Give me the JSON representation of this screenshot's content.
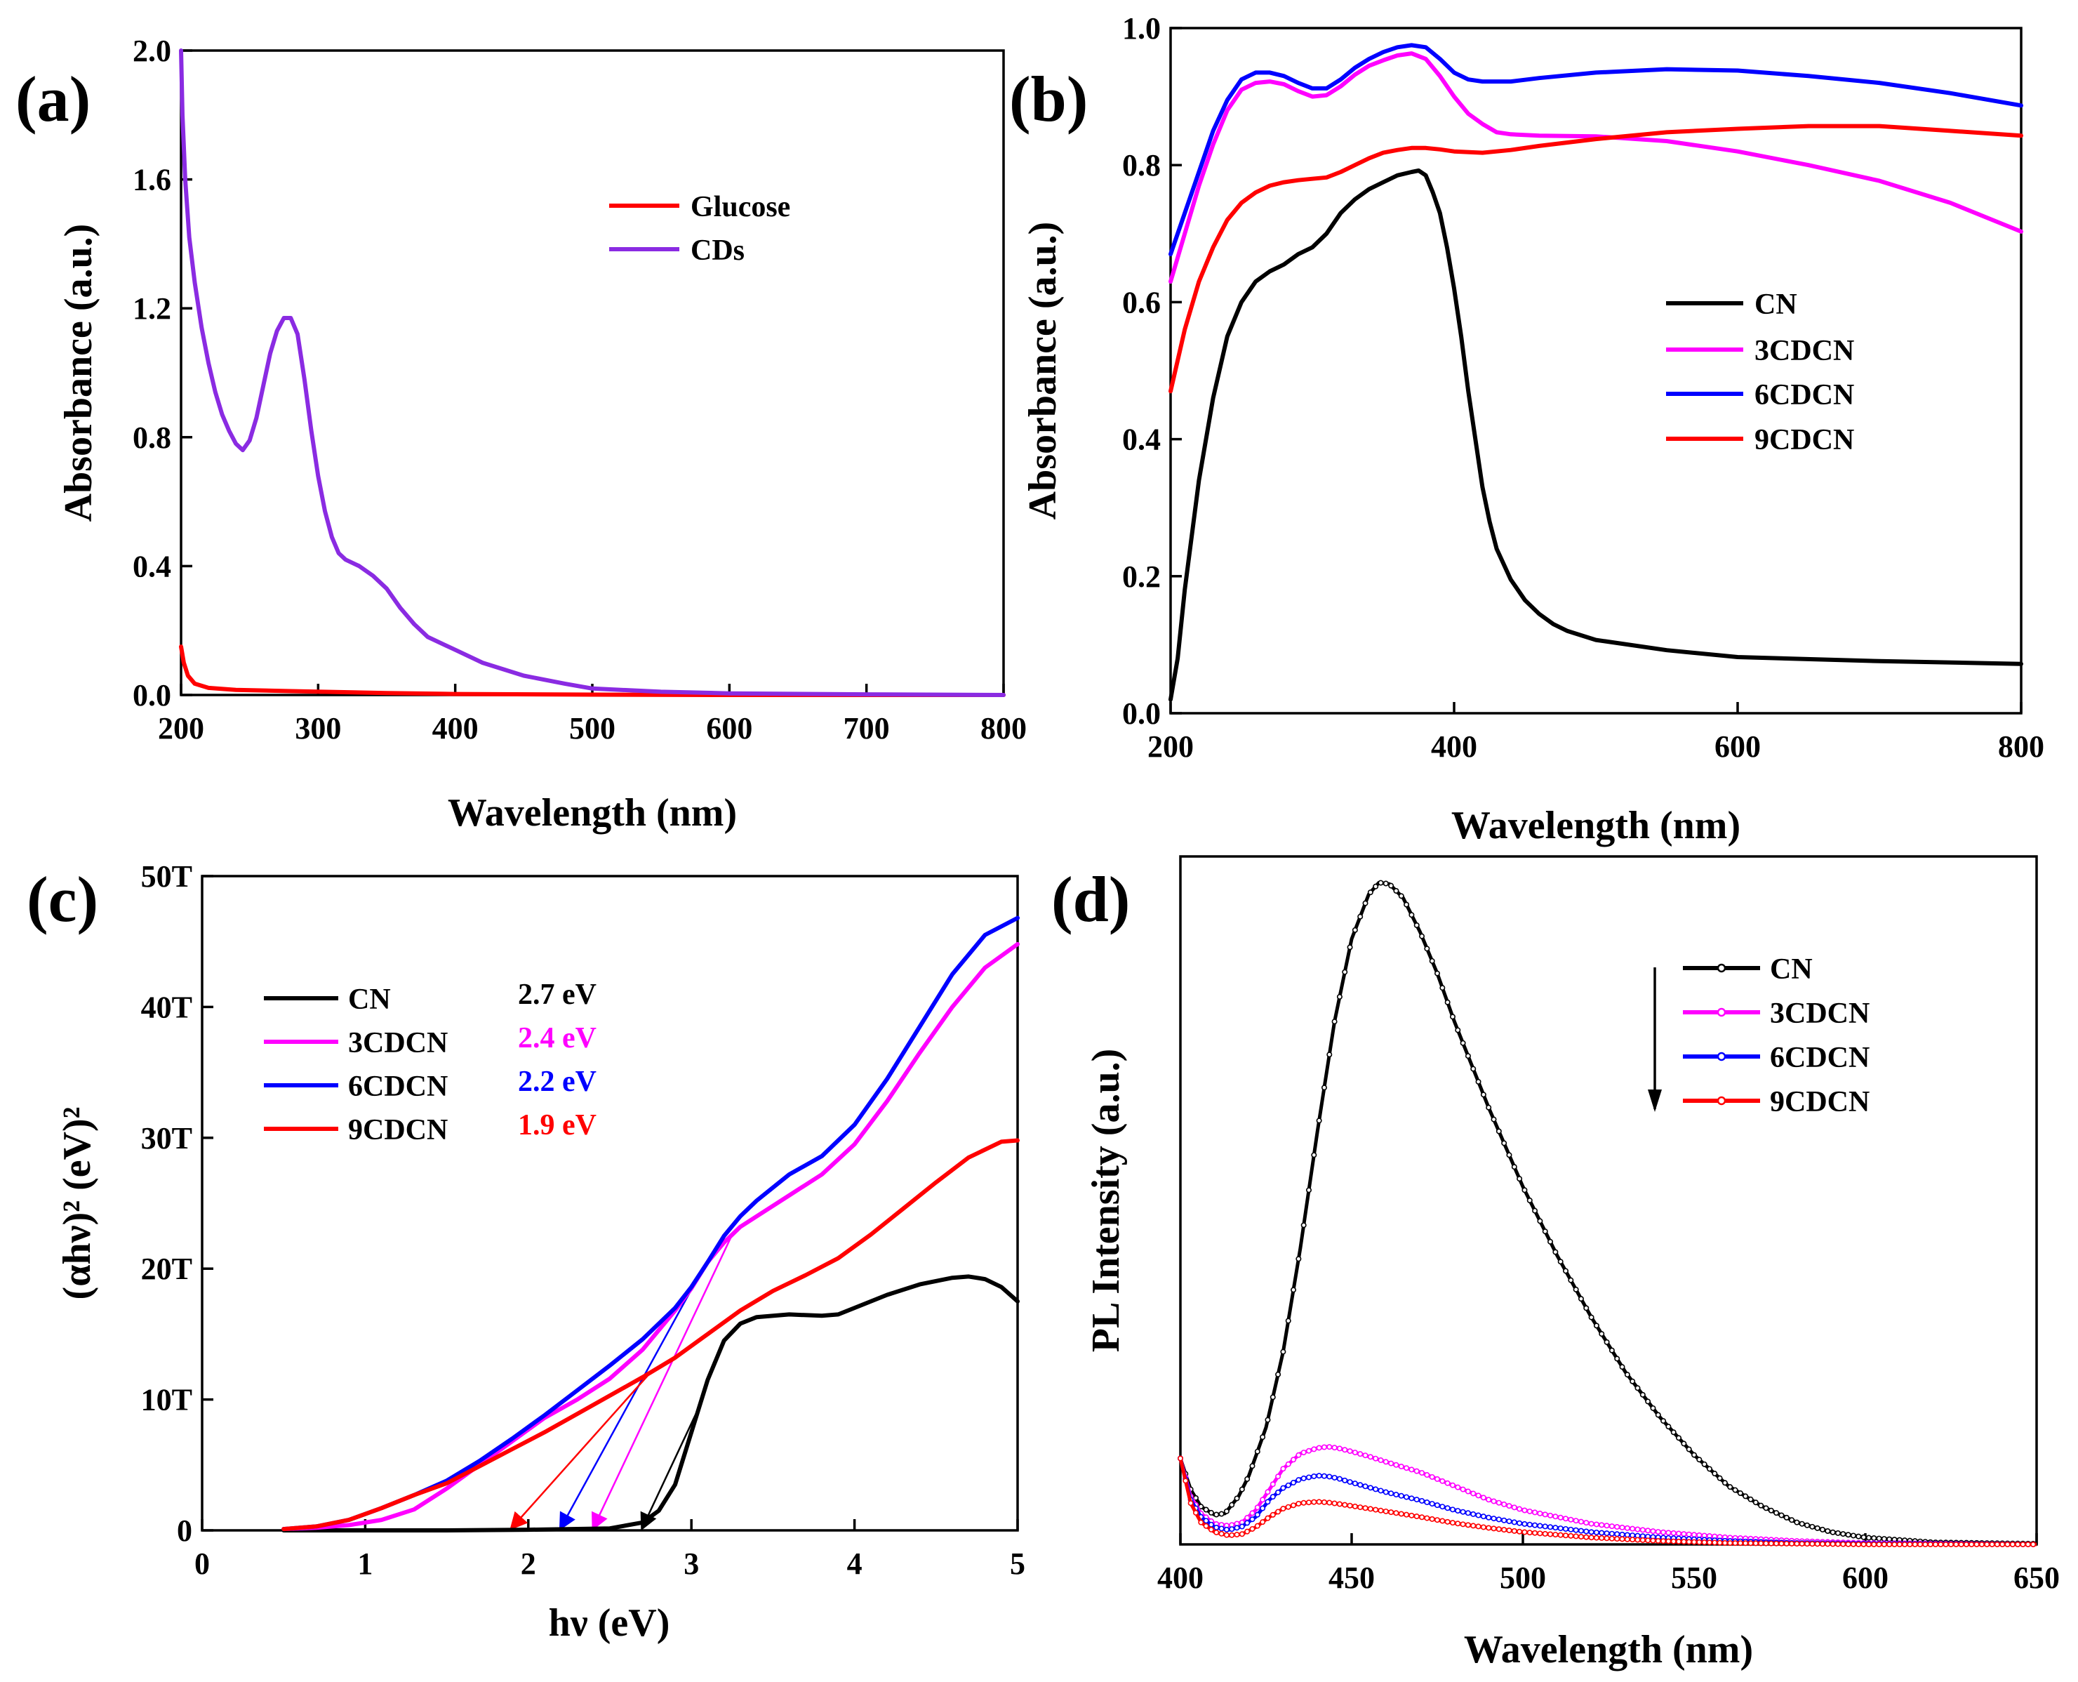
{
  "chart_data": [
    {
      "panel": "(a)",
      "type": "line",
      "xlabel": "Wavelength (nm)",
      "ylabel": "Absorbance (a.u.)",
      "xlim": [
        200,
        800
      ],
      "ylim": [
        0,
        2.0
      ],
      "xticks": [
        "200",
        "300",
        "400",
        "500",
        "600",
        "700",
        "800"
      ],
      "yticks": [
        "0.0",
        "0.4",
        "0.8",
        "1.2",
        "1.6",
        "2.0"
      ],
      "legend_position": "top-right",
      "series": [
        {
          "name": "Glucose",
          "color": "#ff0000",
          "x": [
            200,
            202,
            205,
            210,
            220,
            240,
            280,
            350,
            400,
            500,
            600,
            700,
            800
          ],
          "y": [
            0.15,
            0.1,
            0.06,
            0.035,
            0.022,
            0.016,
            0.012,
            0.006,
            0.003,
            0.001,
            0.0,
            0.0,
            0.0
          ]
        },
        {
          "name": "CDs",
          "color": "#8a2be2",
          "x": [
            200,
            201,
            203,
            206,
            210,
            215,
            220,
            225,
            230,
            235,
            240,
            245,
            250,
            255,
            260,
            265,
            270,
            275,
            280,
            285,
            290,
            295,
            300,
            305,
            310,
            315,
            320,
            330,
            340,
            350,
            360,
            370,
            380,
            400,
            420,
            450,
            480,
            500,
            550,
            600,
            700,
            800
          ],
          "y": [
            2.0,
            1.8,
            1.6,
            1.42,
            1.28,
            1.14,
            1.03,
            0.94,
            0.87,
            0.82,
            0.78,
            0.76,
            0.79,
            0.86,
            0.96,
            1.06,
            1.13,
            1.17,
            1.17,
            1.12,
            0.98,
            0.82,
            0.68,
            0.57,
            0.49,
            0.44,
            0.42,
            0.4,
            0.37,
            0.33,
            0.27,
            0.22,
            0.18,
            0.14,
            0.1,
            0.06,
            0.035,
            0.02,
            0.01,
            0.005,
            0.002,
            0.0
          ]
        }
      ]
    },
    {
      "panel": "(b)",
      "type": "line",
      "xlabel": "Wavelength (nm)",
      "ylabel": "Absorbance (a.u.)",
      "xlim": [
        200,
        800
      ],
      "ylim": [
        0,
        1.0
      ],
      "xticks": [
        "200",
        "400",
        "600",
        "800"
      ],
      "yticks": [
        "0.0",
        "0.2",
        "0.4",
        "0.6",
        "0.8",
        "1.0"
      ],
      "legend_position": "middle-right",
      "series": [
        {
          "name": "CN",
          "color": "#000000",
          "x": [
            200,
            205,
            210,
            220,
            230,
            240,
            250,
            260,
            270,
            280,
            290,
            300,
            310,
            320,
            330,
            340,
            350,
            360,
            370,
            375,
            380,
            385,
            390,
            395,
            400,
            405,
            410,
            415,
            420,
            425,
            430,
            440,
            450,
            460,
            470,
            480,
            500,
            550,
            600,
            700,
            800
          ],
          "y": [
            0.02,
            0.08,
            0.18,
            0.34,
            0.46,
            0.55,
            0.6,
            0.63,
            0.645,
            0.655,
            0.67,
            0.68,
            0.7,
            0.73,
            0.75,
            0.765,
            0.775,
            0.785,
            0.79,
            0.792,
            0.785,
            0.76,
            0.73,
            0.68,
            0.62,
            0.55,
            0.47,
            0.4,
            0.33,
            0.28,
            0.24,
            0.195,
            0.165,
            0.145,
            0.13,
            0.12,
            0.107,
            0.092,
            0.082,
            0.076,
            0.072
          ]
        },
        {
          "name": "3CDCN",
          "color": "#ff00ff",
          "x": [
            200,
            210,
            220,
            230,
            240,
            250,
            260,
            270,
            280,
            290,
            300,
            310,
            320,
            330,
            340,
            350,
            360,
            370,
            380,
            390,
            400,
            410,
            420,
            430,
            440,
            460,
            500,
            550,
            600,
            650,
            700,
            750,
            800
          ],
          "y": [
            0.63,
            0.7,
            0.77,
            0.83,
            0.88,
            0.91,
            0.92,
            0.922,
            0.918,
            0.908,
            0.9,
            0.902,
            0.915,
            0.932,
            0.945,
            0.953,
            0.96,
            0.963,
            0.955,
            0.93,
            0.9,
            0.875,
            0.86,
            0.848,
            0.845,
            0.843,
            0.842,
            0.835,
            0.82,
            0.8,
            0.777,
            0.745,
            0.703
          ]
        },
        {
          "name": "6CDCN",
          "color": "#0000ff",
          "x": [
            200,
            210,
            220,
            230,
            240,
            250,
            260,
            270,
            280,
            290,
            300,
            310,
            320,
            330,
            340,
            350,
            360,
            370,
            380,
            390,
            400,
            410,
            420,
            440,
            460,
            500,
            550,
            600,
            650,
            700,
            750,
            800
          ],
          "y": [
            0.67,
            0.73,
            0.79,
            0.85,
            0.895,
            0.925,
            0.935,
            0.935,
            0.93,
            0.92,
            0.912,
            0.912,
            0.925,
            0.942,
            0.955,
            0.965,
            0.972,
            0.975,
            0.972,
            0.955,
            0.935,
            0.925,
            0.922,
            0.922,
            0.927,
            0.935,
            0.94,
            0.938,
            0.93,
            0.92,
            0.905,
            0.887
          ]
        },
        {
          "name": "9CDCN",
          "color": "#ff0000",
          "x": [
            200,
            210,
            220,
            230,
            240,
            250,
            260,
            270,
            280,
            290,
            300,
            310,
            320,
            330,
            340,
            350,
            360,
            370,
            380,
            390,
            400,
            420,
            440,
            460,
            500,
            550,
            600,
            650,
            700,
            750,
            800
          ],
          "y": [
            0.47,
            0.56,
            0.63,
            0.68,
            0.72,
            0.745,
            0.76,
            0.77,
            0.775,
            0.778,
            0.78,
            0.782,
            0.79,
            0.8,
            0.81,
            0.818,
            0.822,
            0.825,
            0.825,
            0.823,
            0.82,
            0.818,
            0.822,
            0.828,
            0.838,
            0.848,
            0.853,
            0.857,
            0.857,
            0.85,
            0.843
          ]
        }
      ]
    },
    {
      "panel": "(c)",
      "type": "line",
      "xlabel": "hν (eV)",
      "ylabel": "(αhν)² (eV)²",
      "xlim": [
        0,
        5
      ],
      "ylim": [
        0,
        50
      ],
      "y_unit_suffix": "T",
      "xticks": [
        "0",
        "1",
        "2",
        "3",
        "4",
        "5"
      ],
      "yticks": [
        "0",
        "10T",
        "20T",
        "30T",
        "40T",
        "50T"
      ],
      "legend_position": "top-left",
      "series": [
        {
          "name": "CN",
          "bandgap_label": "2.7 eV",
          "bandgap_ev": 2.7,
          "color": "#000000",
          "x": [
            0.5,
            1.0,
            1.5,
            2.0,
            2.5,
            2.7,
            2.8,
            2.9,
            3.0,
            3.1,
            3.2,
            3.3,
            3.4,
            3.6,
            3.8,
            3.9,
            4.0,
            4.2,
            4.4,
            4.6,
            4.7,
            4.8,
            4.9,
            5.0
          ],
          "y": [
            0,
            0,
            0,
            0.05,
            0.15,
            0.6,
            1.5,
            3.5,
            7.5,
            11.5,
            14.5,
            15.8,
            16.3,
            16.5,
            16.4,
            16.5,
            17.0,
            18.0,
            18.8,
            19.3,
            19.4,
            19.2,
            18.6,
            17.5
          ]
        },
        {
          "name": "3CDCN",
          "bandgap_label": "2.4 eV",
          "bandgap_ev": 2.4,
          "color": "#ff00ff",
          "x": [
            0.5,
            0.7,
            0.9,
            1.1,
            1.3,
            1.5,
            1.7,
            1.9,
            2.1,
            2.3,
            2.5,
            2.7,
            2.9,
            3.0,
            3.1,
            3.2,
            3.3,
            3.4,
            3.6,
            3.8,
            4.0,
            4.2,
            4.4,
            4.6,
            4.8,
            5.0
          ],
          "y": [
            0.1,
            0.2,
            0.4,
            0.8,
            1.6,
            3.2,
            5.0,
            6.8,
            8.6,
            10.0,
            11.6,
            13.8,
            16.8,
            18.5,
            20.5,
            22.0,
            23.2,
            24.0,
            25.6,
            27.2,
            29.5,
            32.8,
            36.5,
            40.0,
            43.0,
            44.8
          ]
        },
        {
          "name": "6CDCN",
          "bandgap_label": "2.2 eV",
          "bandgap_ev": 2.2,
          "color": "#0000ff",
          "x": [
            0.5,
            0.7,
            0.9,
            1.1,
            1.3,
            1.5,
            1.7,
            1.9,
            2.1,
            2.3,
            2.5,
            2.7,
            2.9,
            3.0,
            3.1,
            3.2,
            3.3,
            3.4,
            3.6,
            3.8,
            4.0,
            4.2,
            4.4,
            4.6,
            4.8,
            5.0
          ],
          "y": [
            0.1,
            0.3,
            0.8,
            1.7,
            2.7,
            3.8,
            5.3,
            7.0,
            8.8,
            10.7,
            12.6,
            14.6,
            17.0,
            18.6,
            20.5,
            22.5,
            24.0,
            25.2,
            27.2,
            28.6,
            31.0,
            34.5,
            38.5,
            42.5,
            45.5,
            46.8
          ]
        },
        {
          "name": "9CDCN",
          "bandgap_label": "1.9 eV",
          "bandgap_ev": 1.9,
          "color": "#ff0000",
          "x": [
            0.5,
            0.7,
            0.9,
            1.1,
            1.3,
            1.5,
            1.7,
            1.9,
            2.1,
            2.3,
            2.5,
            2.7,
            2.9,
            3.1,
            3.3,
            3.5,
            3.7,
            3.9,
            4.1,
            4.3,
            4.5,
            4.7,
            4.9,
            5.0
          ],
          "y": [
            0.1,
            0.3,
            0.8,
            1.7,
            2.7,
            3.6,
            4.9,
            6.2,
            7.5,
            8.9,
            10.3,
            11.7,
            13.2,
            15.0,
            16.8,
            18.3,
            19.5,
            20.8,
            22.6,
            24.6,
            26.6,
            28.5,
            29.7,
            29.8
          ]
        }
      ]
    },
    {
      "panel": "(d)",
      "type": "line",
      "xlabel": "Wavelength (nm)",
      "ylabel": "PL Intensity (a.u.)",
      "xlim": [
        400,
        650
      ],
      "ylim": [
        0,
        100
      ],
      "xticks": [
        "400",
        "450",
        "500",
        "550",
        "600",
        "650"
      ],
      "legend_position": "top-right",
      "legend_arrow": "decreasing",
      "series": [
        {
          "name": "CN",
          "color": "#000000",
          "x": [
            400,
            403,
            406,
            410,
            413,
            417,
            420,
            425,
            430,
            435,
            440,
            445,
            450,
            455,
            458,
            461,
            465,
            470,
            475,
            480,
            490,
            500,
            510,
            520,
            530,
            540,
            550,
            560,
            570,
            580,
            590,
            600,
            620,
            650
          ],
          "y": [
            12.5,
            8.0,
            5.5,
            4.3,
            4.5,
            7.0,
            10.0,
            17.0,
            28.0,
            43.0,
            60.0,
            76.0,
            88.0,
            94.5,
            96.2,
            96.0,
            94.0,
            89.0,
            83.0,
            76.0,
            63.5,
            52.0,
            42.0,
            33.0,
            25.0,
            18.5,
            13.0,
            8.5,
            5.5,
            3.2,
            1.8,
            1.0,
            0.3,
            0.1
          ]
        },
        {
          "name": "3CDCN",
          "color": "#ff00ff",
          "x": [
            400,
            403,
            406,
            410,
            414,
            418,
            422,
            426,
            430,
            435,
            440,
            443,
            446,
            450,
            455,
            460,
            470,
            480,
            490,
            500,
            520,
            540,
            560,
            580,
            600,
            650
          ],
          "y": [
            12.5,
            7.0,
            4.5,
            3.0,
            2.7,
            3.2,
            5.0,
            8.0,
            11.0,
            13.2,
            14.0,
            14.2,
            14.0,
            13.5,
            12.8,
            12.0,
            10.5,
            8.5,
            6.5,
            5.0,
            3.0,
            1.8,
            1.0,
            0.5,
            0.2,
            0.0
          ]
        },
        {
          "name": "6CDCN",
          "color": "#0000ff",
          "x": [
            400,
            403,
            406,
            410,
            414,
            418,
            422,
            426,
            430,
            435,
            440,
            443,
            446,
            450,
            455,
            460,
            470,
            480,
            490,
            500,
            520,
            540,
            560,
            580,
            600,
            650
          ],
          "y": [
            12.5,
            6.5,
            4.0,
            2.5,
            2.1,
            2.6,
            4.0,
            6.5,
            8.2,
            9.5,
            10.0,
            9.9,
            9.6,
            9.0,
            8.3,
            7.6,
            6.4,
            5.0,
            3.9,
            3.0,
            1.8,
            1.0,
            0.5,
            0.2,
            0.1,
            0.0
          ]
        },
        {
          "name": "9CDCN",
          "color": "#ff0000",
          "x": [
            400,
            403,
            406,
            410,
            414,
            418,
            422,
            426,
            430,
            435,
            440,
            443,
            446,
            450,
            455,
            460,
            470,
            480,
            490,
            500,
            520,
            540,
            560,
            580,
            600,
            650
          ],
          "y": [
            12.5,
            6.0,
            3.2,
            1.8,
            1.3,
            1.5,
            2.5,
            4.0,
            5.2,
            6.0,
            6.2,
            6.1,
            5.9,
            5.6,
            5.2,
            4.8,
            4.0,
            3.1,
            2.4,
            1.8,
            1.0,
            0.5,
            0.2,
            0.1,
            0.0,
            0.0
          ]
        }
      ]
    }
  ]
}
